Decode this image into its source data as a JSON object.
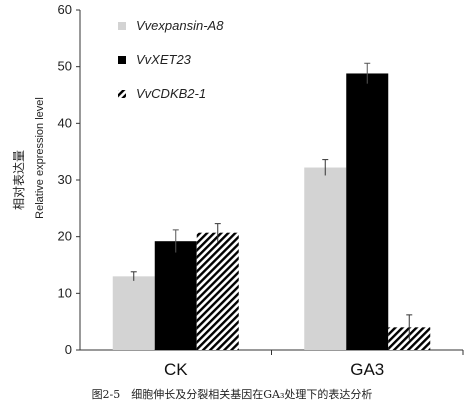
{
  "chart_data": {
    "type": "bar",
    "categories": [
      "CK",
      "GA3"
    ],
    "series": [
      {
        "name": "Vvexpansin-A8",
        "values": [
          13.0,
          32.2
        ],
        "errors": [
          0.8,
          1.4
        ],
        "color": "#d3d3d3",
        "pattern": "solid"
      },
      {
        "name": "VvXET23",
        "values": [
          19.2,
          48.8
        ],
        "errors": [
          2.0,
          1.8
        ],
        "color": "#000000",
        "pattern": "solid"
      },
      {
        "name": "VvCDKB2-1",
        "values": [
          20.7,
          4.0
        ],
        "errors": [
          1.6,
          2.2
        ],
        "color": "#000000",
        "pattern": "diagonal-hatch"
      }
    ],
    "ylim": [
      0,
      60
    ],
    "yticks": [
      0,
      10,
      20,
      30,
      40,
      50,
      60
    ],
    "ylabel_cn": "相对表达量",
    "ylabel_en": "Relative expression level",
    "xlabel": "",
    "legend_position": "top-left",
    "grid": false
  },
  "caption": "图2-5　细胞伸长及分裂相关基因在GA₃处理下的表达分析"
}
